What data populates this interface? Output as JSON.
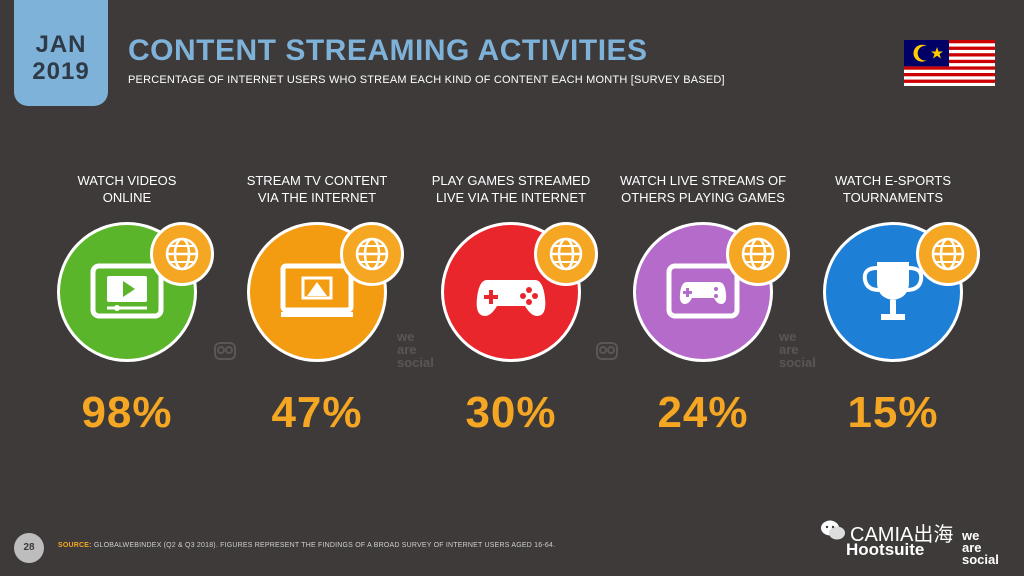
{
  "header": {
    "month": "JAN",
    "year": "2019",
    "title": "CONTENT STREAMING ACTIVITIES",
    "subtitle": "PERCENTAGE OF INTERNET USERS WHO STREAM EACH KIND OF CONTENT EACH MONTH [SURVEY BASED]"
  },
  "items": [
    {
      "label_line1": "WATCH VIDEOS",
      "label_line2": "ONLINE",
      "value": "98%",
      "color": "#5ab52b",
      "icon": "video-player-icon"
    },
    {
      "label_line1": "STREAM TV CONTENT",
      "label_line2": "VIA THE INTERNET",
      "value": "47%",
      "color": "#f39c12",
      "icon": "tv-stream-icon"
    },
    {
      "label_line1": "PLAY GAMES STREAMED",
      "label_line2": "LIVE VIA THE INTERNET",
      "value": "30%",
      "color": "#e8262b",
      "icon": "gamepad-icon"
    },
    {
      "label_line1": "WATCH LIVE STREAMS OF",
      "label_line2": "OTHERS PLAYING GAMES",
      "value": "24%",
      "color": "#b56bc9",
      "icon": "gamepad-screen-icon"
    },
    {
      "label_line1": "WATCH E-SPORTS",
      "label_line2": "TOURNAMENTS",
      "value": "15%",
      "color": "#1e7fd6",
      "icon": "trophy-icon"
    }
  ],
  "watermark": {
    "line1": "we",
    "line2": "are",
    "line3": "social"
  },
  "footer": {
    "page": "28",
    "source_key": "SOURCE:",
    "source_text": "GLOBALWEBINDEX (Q2 & Q3 2018). FIGURES REPRESENT THE FINDINGS OF A BROAD SURVEY OF INTERNET USERS AGED 16-64.",
    "wechat_text": "CAMIA出海",
    "brand1": "Hootsuite",
    "brand2_line1": "we",
    "brand2_line2": "are",
    "brand2_line3": "social"
  }
}
